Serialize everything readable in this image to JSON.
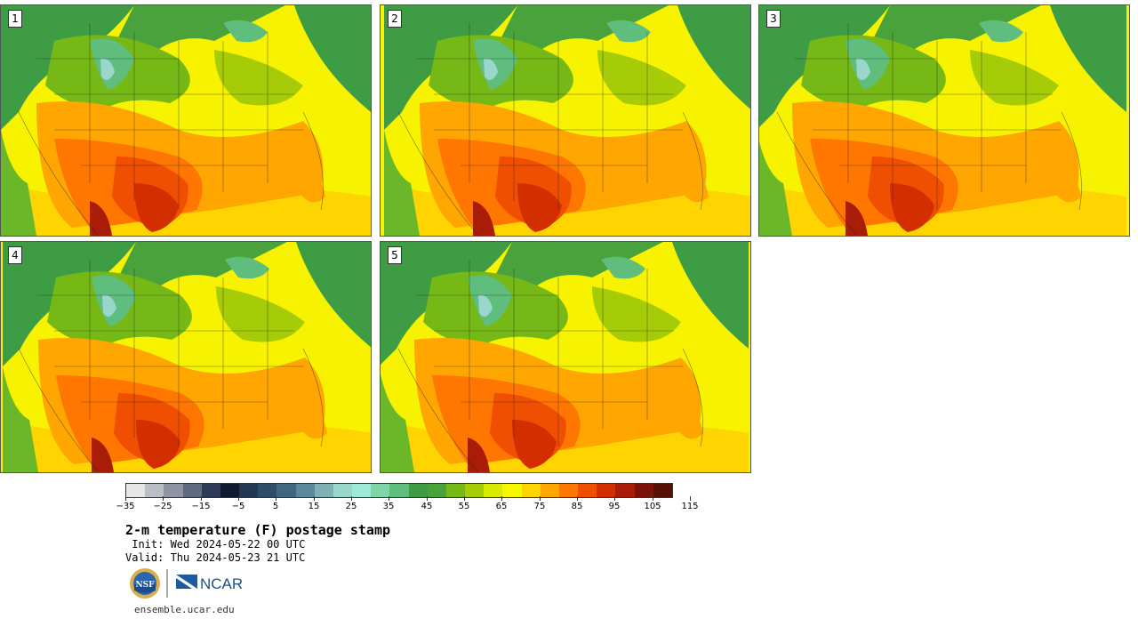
{
  "panels": [
    {
      "label": "1"
    },
    {
      "label": "2"
    },
    {
      "label": "3"
    },
    {
      "label": "4"
    },
    {
      "label": "5"
    }
  ],
  "colorbar": {
    "colors": [
      "#e6e6e6",
      "#bcbec6",
      "#8f94a4",
      "#606a80",
      "#2e3b58",
      "#0d1a30",
      "#223852",
      "#2f4d68",
      "#3f6880",
      "#5a8a9a",
      "#7fb0b4",
      "#9ad6cc",
      "#9ee8d8",
      "#7fd4a8",
      "#5fbe7e",
      "#3e9c44",
      "#4aa23c",
      "#76b816",
      "#a6cc08",
      "#d8ea00",
      "#f6f600",
      "#ffd400",
      "#ffa600",
      "#ff7600",
      "#f04e00",
      "#d22e00",
      "#a81c08",
      "#7a1208",
      "#561008"
    ],
    "tick_labels": [
      "−35",
      "−25",
      "−15",
      "−5",
      "5",
      "15",
      "25",
      "35",
      "45",
      "55",
      "65",
      "75",
      "85",
      "95",
      "105",
      "115"
    ]
  },
  "title": "2-m temperature (F) postage stamp",
  "init": " Init: Wed 2024-05-22 00 UTC",
  "valid": "Valid: Thu 2024-05-23 21 UTC",
  "logos": {
    "nsf": "NSF",
    "ncar": "NCAR"
  },
  "url": "ensemble.ucar.edu"
}
